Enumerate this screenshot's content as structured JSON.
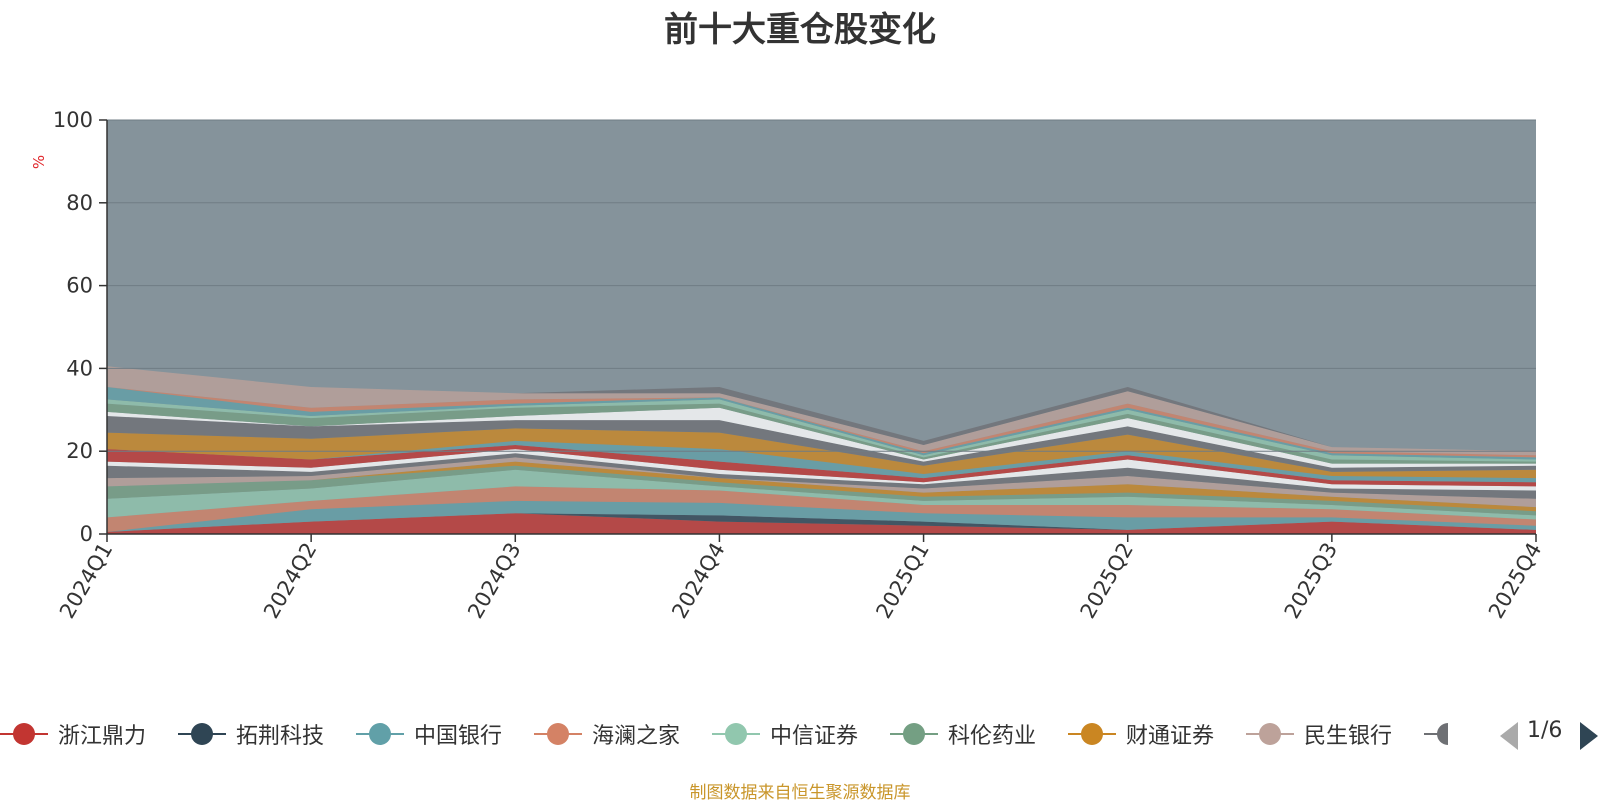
{
  "chart_data": {
    "type": "area",
    "title": "前十大重仓股变化",
    "ylabel": "%",
    "ylim": [
      0,
      100
    ],
    "yticks": [
      0,
      20,
      40,
      60,
      80,
      100
    ],
    "categories": [
      "2024Q1",
      "2024Q2",
      "2024Q3",
      "2024Q4",
      "2025Q1",
      "2025Q2",
      "2025Q3",
      "2025Q4"
    ],
    "stacked": true,
    "grid": true,
    "background_series": {
      "name": "",
      "value": 100,
      "color": "#85939b"
    },
    "series": [
      {
        "name": "浙江鼎力",
        "color": "#c23531",
        "values": [
          0.5,
          3,
          5,
          3,
          2,
          1,
          3,
          1
        ]
      },
      {
        "name": "拓荆科技",
        "color": "#2f4554",
        "values": [
          0,
          0,
          0,
          1.5,
          1,
          0,
          0,
          0
        ]
      },
      {
        "name": "中国银行",
        "color": "#61a0a8",
        "values": [
          0,
          3,
          3,
          3,
          2,
          3,
          1,
          1
        ]
      },
      {
        "name": "海澜之家",
        "color": "#d48265",
        "values": [
          3.5,
          2,
          3.5,
          3,
          2,
          3,
          2,
          1.5
        ]
      },
      {
        "name": "中信证券",
        "color": "#91c7ae",
        "values": [
          4.5,
          3,
          4,
          1,
          1,
          2,
          1,
          1
        ]
      },
      {
        "name": "科伦药业",
        "color": "#749f83",
        "values": [
          3,
          2,
          1,
          1,
          1,
          1,
          1,
          1
        ]
      },
      {
        "name": "财通证券",
        "color": "#ca8622",
        "values": [
          0,
          0,
          1,
          1,
          1,
          2,
          1,
          1
        ]
      },
      {
        "name": "民生银行",
        "color": "#bda29a",
        "values": [
          2,
          1,
          1,
          0,
          1,
          2,
          1,
          2
        ]
      },
      {
        "name": "",
        "color": "#6e7074",
        "values": [
          3,
          1,
          1,
          1,
          1,
          2,
          1,
          2
        ]
      },
      {
        "name": "",
        "color": "#ffffff",
        "values": [
          1,
          1,
          1,
          1,
          0.5,
          2,
          1,
          1
        ]
      },
      {
        "name": "",
        "color": "#c23531",
        "values": [
          3,
          2,
          1,
          2,
          1,
          1,
          1,
          1
        ]
      },
      {
        "name": "",
        "color": "#61a0a8",
        "values": [
          0,
          0,
          1,
          3,
          1,
          1,
          1,
          1
        ]
      },
      {
        "name": "",
        "color": "#ca8622",
        "values": [
          4,
          5,
          3,
          4,
          2,
          4,
          1,
          2
        ]
      },
      {
        "name": "",
        "color": "#6e7074",
        "values": [
          4,
          3,
          2,
          3,
          1,
          2,
          1,
          1
        ]
      },
      {
        "name": "",
        "color": "#ffffff",
        "values": [
          1,
          0,
          1,
          3,
          0.5,
          2,
          1,
          0.5
        ]
      },
      {
        "name": "",
        "color": "#749f83",
        "values": [
          2,
          2,
          2,
          1,
          0.5,
          1,
          1,
          0.5
        ]
      },
      {
        "name": "",
        "color": "#91c7ae",
        "values": [
          1,
          0.5,
          0.5,
          1,
          0.5,
          1,
          1,
          0.5
        ]
      },
      {
        "name": "",
        "color": "#61a0a8",
        "values": [
          3,
          1,
          0.5,
          0.5,
          0.5,
          0.5,
          0.5,
          0.5
        ]
      },
      {
        "name": "",
        "color": "#d48265",
        "values": [
          0,
          1,
          1,
          0,
          0.5,
          1,
          0.5,
          0.5
        ]
      },
      {
        "name": "",
        "color": "#bda29a",
        "values": [
          5,
          5,
          1.5,
          1,
          1.5,
          3,
          1,
          1
        ]
      },
      {
        "name": "",
        "color": "#6e7074",
        "values": [
          0,
          0,
          0,
          1.5,
          1,
          1,
          0,
          0
        ]
      }
    ],
    "legend": {
      "position": "bottom",
      "page": "1/6",
      "colors": [
        "#c23531",
        "#2f4554",
        "#61a0a8",
        "#d48265",
        "#91c7ae",
        "#749f83",
        "#ca8622",
        "#bda29a",
        "#6e7074"
      ],
      "truncated_last": "7"
    }
  },
  "source_note": "制图数据来自恒生聚源数据库"
}
